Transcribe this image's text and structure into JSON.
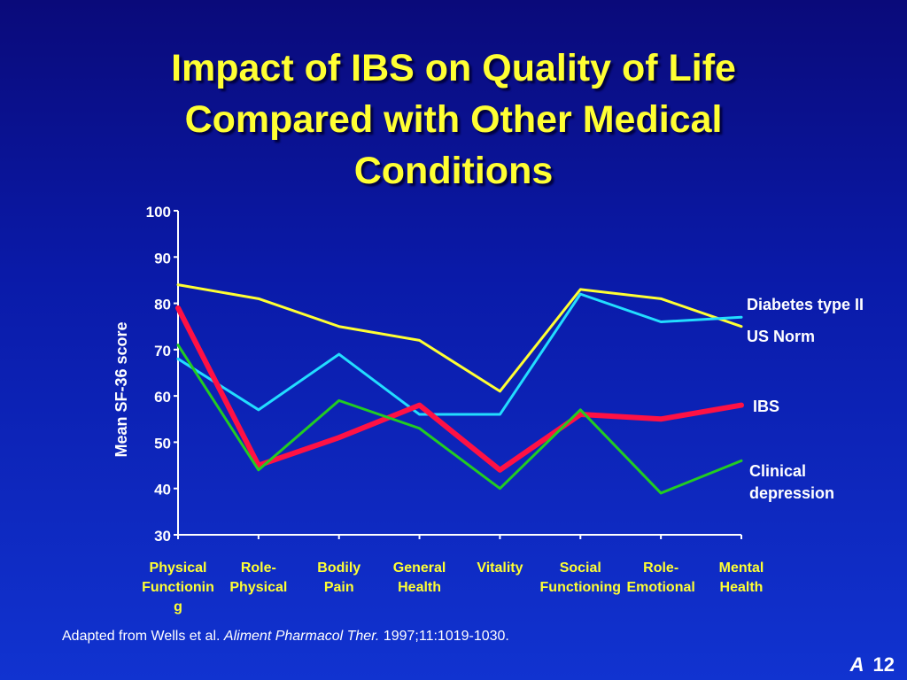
{
  "slide": {
    "title": "Impact of IBS on Quality of Life\nCompared with Other Medical\nConditions",
    "footer_prefix": "Adapted from Wells et al. ",
    "footer_journal": "Aliment Pharmacol Ther.",
    "footer_suffix": " 1997;11:1019-1030.",
    "slide_letter": "A",
    "slide_number": "12"
  },
  "chart_data": {
    "type": "line",
    "ylabel": "Mean SF-36 score",
    "ylim": [
      30,
      100
    ],
    "yticks": [
      "30",
      "40",
      "50",
      "60",
      "70",
      "80",
      "90",
      "100"
    ],
    "categories": [
      [
        "Physical",
        "Functionin",
        "g"
      ],
      [
        "Role-",
        "Physical"
      ],
      [
        "Bodily",
        "Pain"
      ],
      [
        "General",
        "Health"
      ],
      [
        "Vitality"
      ],
      [
        "Social",
        "Functioning"
      ],
      [
        "Role-",
        "Emotional"
      ],
      [
        "Mental",
        "Health"
      ]
    ],
    "series": [
      {
        "name": "Diabetes type II",
        "label_lines": [
          "Diabetes type II"
        ],
        "color": "#ffff33",
        "width": 3,
        "values": [
          84,
          81,
          75,
          72,
          61,
          83,
          81,
          75
        ]
      },
      {
        "name": "US Norm",
        "label_lines": [
          "US Norm"
        ],
        "color": "#22ddff",
        "width": 3,
        "values": [
          68,
          57,
          69,
          56,
          56,
          82,
          76,
          77
        ]
      },
      {
        "name": "IBS",
        "label_lines": [
          "IBS"
        ],
        "color": "#ff1144",
        "width": 6,
        "values": [
          79,
          45,
          51,
          58,
          44,
          56,
          55,
          58
        ]
      },
      {
        "name": "Clinical depression",
        "label_lines": [
          "Clinical",
          "depression"
        ],
        "color": "#22cc22",
        "width": 3,
        "values": [
          71,
          44,
          59,
          53,
          40,
          57,
          39,
          46
        ]
      }
    ]
  }
}
